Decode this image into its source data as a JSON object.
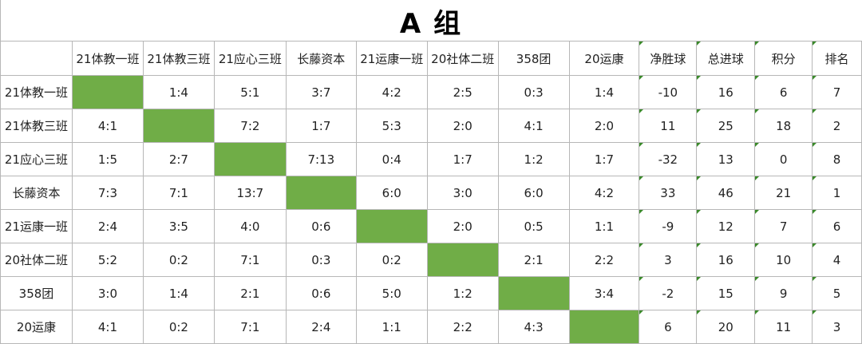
{
  "title": "A 组",
  "columns": [
    "21体教一班",
    "21体教三班",
    "21应心三班",
    "长藤资本",
    "21运康一班",
    "20社体二班",
    "358团",
    "20运康",
    "净胜球",
    "总进球",
    "积分",
    "排名"
  ],
  "rows": [
    {
      "team": "21体教一班",
      "cells": [
        "",
        "1:4",
        "5:1",
        "3:7",
        "4:2",
        "2:5",
        "0:3",
        "1:4",
        "-10",
        "16",
        "6",
        "7"
      ]
    },
    {
      "team": "21体教三班",
      "cells": [
        "4:1",
        "",
        "7:2",
        "1:7",
        "5:3",
        "2:0",
        "4:1",
        "2:0",
        "11",
        "25",
        "18",
        "2"
      ]
    },
    {
      "team": "21应心三班",
      "cells": [
        "1:5",
        "2:7",
        "",
        "7:13",
        "0:4",
        "1:7",
        "1:2",
        "1:7",
        "-32",
        "13",
        "0",
        "8"
      ]
    },
    {
      "team": "长藤资本",
      "cells": [
        "7:3",
        "7:1",
        "13:7",
        "",
        "6:0",
        "3:0",
        "6:0",
        "4:2",
        "33",
        "46",
        "21",
        "1"
      ]
    },
    {
      "team": "21运康一班",
      "cells": [
        "2:4",
        "3:5",
        "4:0",
        "0:6",
        "",
        "2:0",
        "0:5",
        "1:1",
        "-9",
        "12",
        "7",
        "6"
      ]
    },
    {
      "team": "20社体二班",
      "cells": [
        "5:2",
        "0:2",
        "7:1",
        "0:3",
        "0:2",
        "",
        "2:1",
        "2:2",
        "3",
        "16",
        "10",
        "4"
      ]
    },
    {
      "team": "358团",
      "cells": [
        "3:0",
        "1:4",
        "2:1",
        "0:6",
        "5:0",
        "1:2",
        "",
        "3:4",
        "-2",
        "15",
        "9",
        "5"
      ]
    },
    {
      "team": "20运康",
      "cells": [
        "4:1",
        "0:2",
        "7:1",
        "2:4",
        "1:1",
        "2:2",
        "4:3",
        "",
        "6",
        "20",
        "11",
        "3"
      ]
    }
  ],
  "colors": {
    "diagonal": "#70ad47",
    "grid": "#b7b7b7"
  }
}
